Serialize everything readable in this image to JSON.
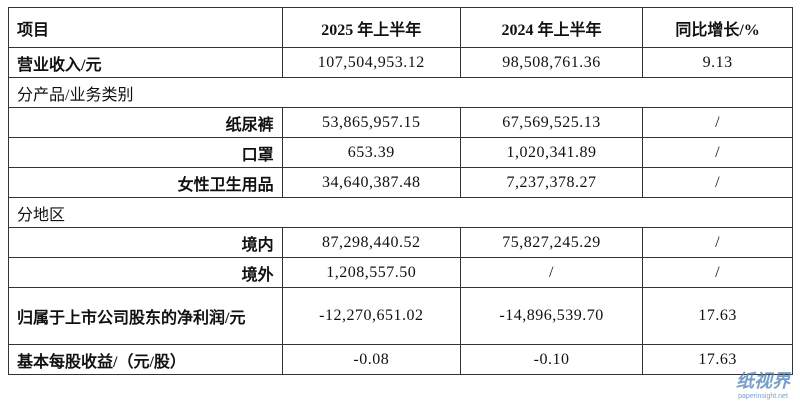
{
  "table": {
    "header": [
      "项目",
      "2025 年上半年",
      "2024 年上半年",
      "同比增长/%"
    ],
    "rows": [
      [
        "营业收入/元",
        "107,504,953.12",
        "98,508,761.36",
        "9.13"
      ],
      [
        "分产品/业务类别"
      ],
      [
        "纸尿裤",
        "53,865,957.15",
        "67,569,525.13",
        "/"
      ],
      [
        "口罩",
        "653.39",
        "1,020,341.89",
        "/"
      ],
      [
        "女性卫生用品",
        "34,640,387.48",
        "7,237,378.27",
        "/"
      ],
      [
        "分地区"
      ],
      [
        "境内",
        "87,298,440.52",
        "75,827,245.29",
        "/"
      ],
      [
        "境外",
        "1,208,557.50",
        "/",
        "/"
      ],
      [
        "归属于上市公司股东的净利润/元",
        "-12,270,651.02",
        "-14,896,539.70",
        "17.63"
      ],
      [
        "基本每股收益/（元/股）",
        "-0.08",
        "-0.10",
        "17.63"
      ]
    ]
  },
  "watermark": {
    "logo": "纸视界",
    "url": "paperinsight.net"
  }
}
